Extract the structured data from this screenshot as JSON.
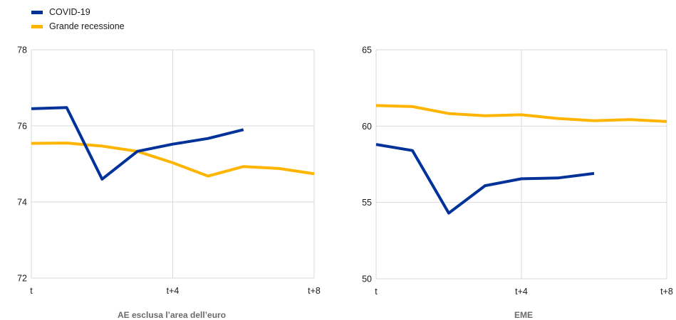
{
  "legend": {
    "items": [
      {
        "label": "COVID-19",
        "color": "#003299"
      },
      {
        "label": "Grande recessione",
        "color": "#FFB400"
      }
    ]
  },
  "chart_data": [
    {
      "type": "line",
      "title": "AE esclusa l’area dell’euro",
      "xlabel": "",
      "ylabel": "",
      "categories": [
        "t",
        "t+1",
        "t+2",
        "t+3",
        "t+4",
        "t+5",
        "t+6",
        "t+7",
        "t+8"
      ],
      "x_tick_labels": [
        "t",
        "t+4",
        "t+8"
      ],
      "ylim": [
        72,
        78
      ],
      "y_ticks": [
        72,
        74,
        76,
        78
      ],
      "grid": true,
      "legend_position": "top-left",
      "series": [
        {
          "name": "COVID-19",
          "color": "#003299",
          "values": [
            76.45,
            76.48,
            74.6,
            75.33,
            75.52,
            75.67,
            75.9,
            null,
            null
          ]
        },
        {
          "name": "Grande recessione",
          "color": "#FFB400",
          "values": [
            75.54,
            75.55,
            75.47,
            75.33,
            75.03,
            74.68,
            74.93,
            74.88,
            74.74
          ]
        }
      ]
    },
    {
      "type": "line",
      "title": "EME",
      "xlabel": "",
      "ylabel": "",
      "categories": [
        "t",
        "t+1",
        "t+2",
        "t+3",
        "t+4",
        "t+5",
        "t+6",
        "t+7",
        "t+8"
      ],
      "x_tick_labels": [
        "t",
        "t+4",
        "t+8"
      ],
      "ylim": [
        50,
        65
      ],
      "y_ticks": [
        50,
        55,
        60,
        65
      ],
      "grid": true,
      "series": [
        {
          "name": "COVID-19",
          "color": "#003299",
          "values": [
            58.8,
            58.4,
            54.3,
            56.1,
            56.55,
            56.6,
            56.9,
            null,
            null
          ]
        },
        {
          "name": "Grande recessione",
          "color": "#FFB400",
          "values": [
            61.35,
            61.28,
            60.82,
            60.68,
            60.74,
            60.5,
            60.35,
            60.43,
            60.3
          ]
        }
      ]
    }
  ]
}
